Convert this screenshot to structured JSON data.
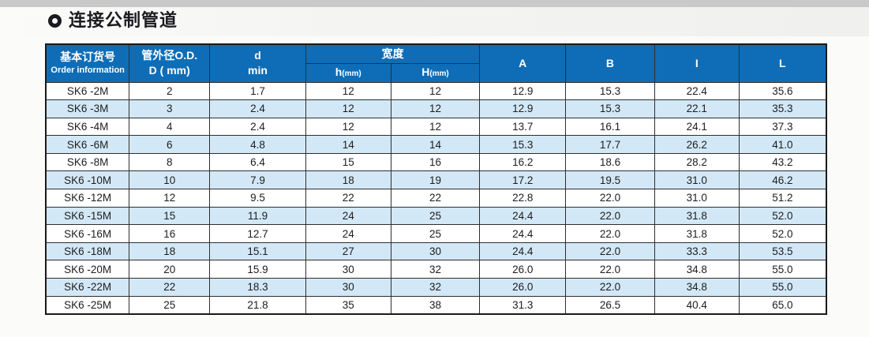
{
  "section": {
    "title": "连接公制管道",
    "bullet_icon": "circle-ring-icon"
  },
  "table": {
    "headers": {
      "order_zh": "基本订货号",
      "order_en": "Order information",
      "od_line1": "管外径O.D.",
      "od_line2": "D ( mm)",
      "d_line1": "d",
      "d_line2": "min",
      "width_group": "宽度",
      "h_label": "h",
      "h_unit": "(mm)",
      "H_label": "H",
      "H_unit": "(mm)",
      "col_A": "A",
      "col_B": "B",
      "col_I": "I",
      "col_L": "L"
    },
    "rows": [
      [
        "SK6 -2M",
        "2",
        "1.7",
        "12",
        "12",
        "12.9",
        "15.3",
        "22.4",
        "35.6"
      ],
      [
        "SK6 -3M",
        "3",
        "2.4",
        "12",
        "12",
        "12.9",
        "15.3",
        "22.1",
        "35.3"
      ],
      [
        "SK6 -4M",
        "4",
        "2.4",
        "12",
        "12",
        "13.7",
        "16.1",
        "24.1",
        "37.3"
      ],
      [
        "SK6 -6M",
        "6",
        "4.8",
        "14",
        "14",
        "15.3",
        "17.7",
        "26.2",
        "41.0"
      ],
      [
        "SK6 -8M",
        "8",
        "6.4",
        "15",
        "16",
        "16.2",
        "18.6",
        "28.2",
        "43.2"
      ],
      [
        "SK6 -10M",
        "10",
        "7.9",
        "18",
        "19",
        "17.2",
        "19.5",
        "31.0",
        "46.2"
      ],
      [
        "SK6 -12M",
        "12",
        "9.5",
        "22",
        "22",
        "22.8",
        "22.0",
        "31.0",
        "51.2"
      ],
      [
        "SK6 -15M",
        "15",
        "11.9",
        "24",
        "25",
        "24.4",
        "22.0",
        "31.8",
        "52.0"
      ],
      [
        "SK6 -16M",
        "16",
        "12.7",
        "24",
        "25",
        "24.4",
        "22.0",
        "31.8",
        "52.0"
      ],
      [
        "SK6 -18M",
        "18",
        "15.1",
        "27",
        "30",
        "24.4",
        "22.0",
        "33.3",
        "53.5"
      ],
      [
        "SK6 -20M",
        "20",
        "15.9",
        "30",
        "32",
        "26.0",
        "22.0",
        "34.8",
        "55.0"
      ],
      [
        "SK6 -22M",
        "22",
        "18.3",
        "30",
        "32",
        "26.0",
        "22.0",
        "34.8",
        "55.0"
      ],
      [
        "SK6 -25M",
        "25",
        "21.8",
        "35",
        "38",
        "31.3",
        "26.5",
        "40.4",
        "65.0"
      ]
    ],
    "striped_row_indices": [
      1,
      3,
      5,
      7,
      9,
      11
    ]
  },
  "colors": {
    "header_bg": "#0e6db6",
    "header_text": "#ffffff",
    "row_stripe": "#d2e8f7",
    "grid_border": "#2e2e2e",
    "outer_border": "#1a1a1a",
    "body_text": "#1d1d1d",
    "title_text": "#1a1a20",
    "top_strip": "#c9c9c9"
  }
}
